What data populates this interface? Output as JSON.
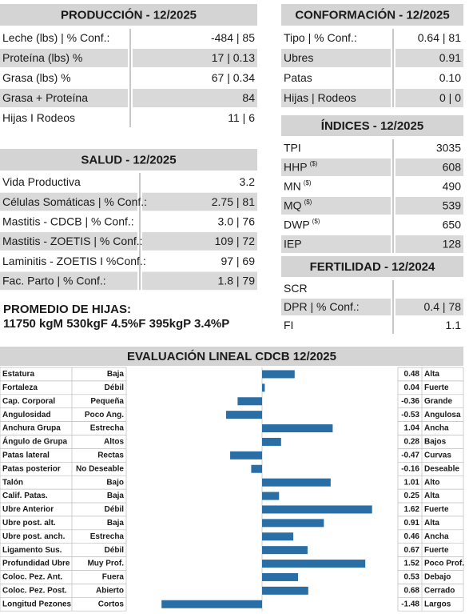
{
  "produccion": {
    "title": "PRODUCCIÓN - 12/2025",
    "rows": [
      {
        "label": "Leche (lbs) | % Conf.:",
        "value": "-484 | 85"
      },
      {
        "label": "Proteína (lbs) %",
        "value": "17 | 0.13"
      },
      {
        "label": "Grasa (lbs) %",
        "value": "67 | 0.34"
      },
      {
        "label": "Grasa + Proteína",
        "value": "84"
      },
      {
        "label": "Hijas I Rodeos",
        "value": "11 | 6"
      }
    ]
  },
  "salud": {
    "title": "SALUD - 12/2025",
    "rows": [
      {
        "label": "Vida Productiva",
        "value": "3.2"
      },
      {
        "label": "Células Somáticas | % Conf.:",
        "value": "2.75 | 81"
      },
      {
        "label": "Mastitis - CDCB | % Conf.:",
        "value": "3.0 | 76"
      },
      {
        "label": "Mastitis - ZOETIS | % Conf.:",
        "value": "109 | 72"
      },
      {
        "label": "Laminitis - ZOETIS I %Conf.:",
        "value": "97 | 69"
      },
      {
        "label": "Fac. Parto | % Conf.:",
        "value": "1.8 | 79"
      }
    ]
  },
  "promedio": {
    "title": "PROMEDIO DE HIJAS:",
    "text": "11750 kgM 530kgF 4.5%F 395kgP 3.4%P"
  },
  "conformacion": {
    "title": "CONFORMACIÓN - 12/2025",
    "rows": [
      {
        "label": "Tipo | % Conf.:",
        "value": "0.64 | 81"
      },
      {
        "label": "Ubres",
        "value": "0.91"
      },
      {
        "label": "Patas",
        "value": "0.10"
      },
      {
        "label": "Hijas | Rodeos",
        "value": "0 | 0"
      }
    ]
  },
  "indices": {
    "title": "ÍNDICES - 12/2025",
    "rows": [
      {
        "label": "TPI",
        "value": "3035"
      },
      {
        "label": "HHP",
        "sup": "($)",
        "value": "608"
      },
      {
        "label": "MN",
        "sup": "($)",
        "value": "490"
      },
      {
        "label": "MQ",
        "sup": "($)",
        "value": "539"
      },
      {
        "label": "DWP",
        "sup": "($)",
        "value": "650"
      },
      {
        "label": "IEP",
        "value": "128"
      }
    ]
  },
  "fertilidad": {
    "title": "FERTILIDAD - 12/2024",
    "rows": [
      {
        "label": "SCR"
      },
      {
        "label": "DPR | % Conf.:",
        "value": "0.4 | 78"
      },
      {
        "label": "FI",
        "value": "1.1"
      }
    ]
  },
  "chart_data": {
    "type": "bar",
    "orientation": "horizontal",
    "title": "EVALUACIÓN LINEAL CDCB 12/2025",
    "categories": [
      "Estatura",
      "Fortaleza",
      "Cap. Corporal",
      "Angulosidad",
      "Anchura Grupa",
      "Ángulo de Grupa",
      "Patas lateral",
      "Patas posterior",
      "Talón",
      "Calif. Patas.",
      "Ubre Anterior",
      "Ubre post. alt.",
      "Ubre post. anch.",
      "Ligamento Sus.",
      "Profundidad Ubre",
      "Coloc. Pez. Ant.",
      "Coloc. Pez. Post.",
      "Longitud Pezones"
    ],
    "low_labels": [
      "Baja",
      "Débil",
      "Pequeña",
      "Poco Ang.",
      "Estrecha",
      "Altos",
      "Rectas",
      "No Deseable",
      "Bajo",
      "Baja",
      "Débil",
      "Baja",
      "Estrecha",
      "Débil",
      "Muy Prof.",
      "Fuera",
      "Abierto",
      "Cortos"
    ],
    "high_labels": [
      "Alta",
      "Fuerte",
      "Grande",
      "Angulosa",
      "Ancha",
      "Bajos",
      "Curvas",
      "Deseable",
      "Alto",
      "Alta",
      "Fuerte",
      "Alta",
      "Ancha",
      "Fuerte",
      "Poco Prof.",
      "Debajo",
      "Cerrado",
      "Largos"
    ],
    "values": [
      0.48,
      0.04,
      -0.36,
      -0.53,
      1.04,
      0.28,
      -0.47,
      -0.16,
      1.01,
      0.25,
      1.62,
      0.91,
      0.46,
      0.67,
      1.52,
      0.53,
      0.68,
      -1.48
    ],
    "color": "#2a6ea6",
    "xlim": [
      -2,
      2
    ]
  }
}
